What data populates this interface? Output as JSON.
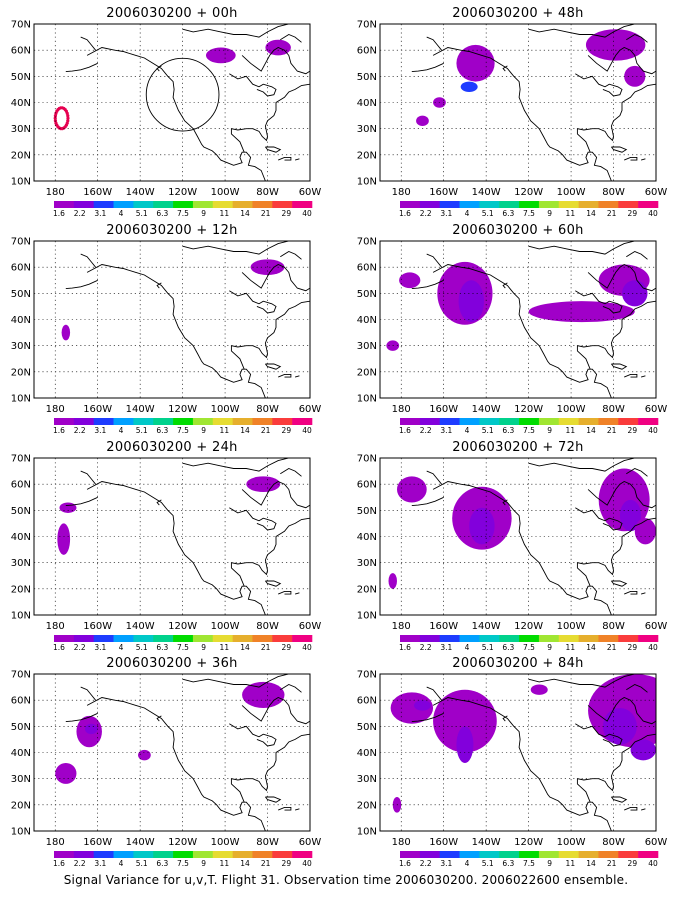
{
  "panels": [
    {
      "title": "2006030200 + 00h"
    },
    {
      "title": "2006030200 + 48h"
    },
    {
      "title": "2006030200 + 12h"
    },
    {
      "title": "2006030200 + 60h"
    },
    {
      "title": "2006030200 + 24h"
    },
    {
      "title": "2006030200 + 72h"
    },
    {
      "title": "2006030200 + 36h"
    },
    {
      "title": "2006030200 + 84h"
    }
  ],
  "map": {
    "lat_ticks": [
      "70N",
      "60N",
      "50N",
      "40N",
      "30N",
      "20N",
      "10N"
    ],
    "lon_ticks": [
      "180",
      "160W",
      "140W",
      "120W",
      "100W",
      "80W",
      "60W"
    ]
  },
  "colorbar": {
    "labels": [
      "1.6",
      "2.2",
      "3.1",
      "4",
      "5.1",
      "6.3",
      "7.5",
      "9",
      "11",
      "14",
      "21",
      "29",
      "40"
    ],
    "colors": [
      "#a000c8",
      "#8200dc",
      "#1e3cff",
      "#00a0ff",
      "#00c8c8",
      "#00d28c",
      "#00dc00",
      "#a0e632",
      "#e6dc32",
      "#e6af2d",
      "#f08228",
      "#fa3c3c",
      "#f00082"
    ]
  },
  "footer": "Signal Variance for u,v,T. Flight 31. Observation time 2006030200. 2006022600 ensemble."
}
